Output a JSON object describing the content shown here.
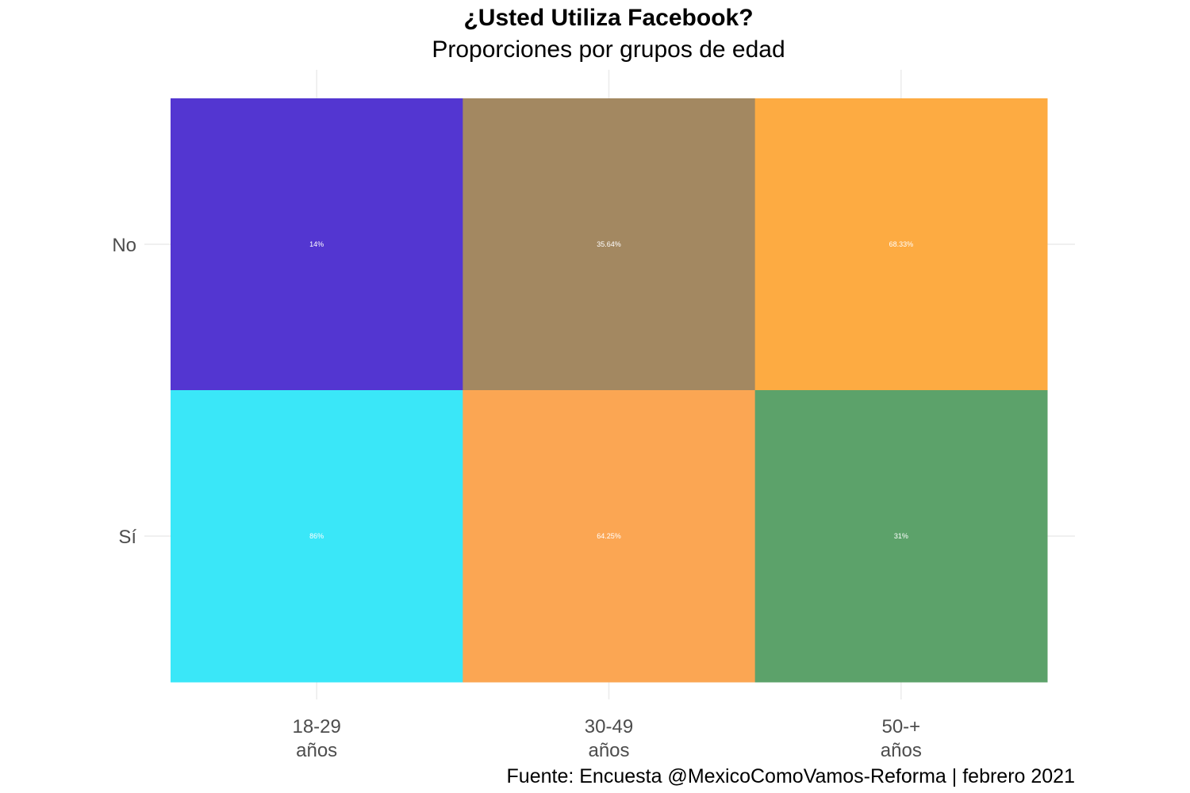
{
  "chart_data": {
    "type": "heatmap",
    "title": "¿Usted Utiliza Facebook?",
    "subtitle": "Proporciones por grupos de edad",
    "caption": "Fuente: Encuesta @MexicoComoVamos-Reforma | febrero 2021",
    "x_categories": [
      {
        "line1": "18-29",
        "line2": "años"
      },
      {
        "line1": "30-49",
        "line2": "años"
      },
      {
        "line1": "50-+",
        "line2": "años"
      }
    ],
    "y_categories": [
      "No",
      "Sí"
    ],
    "cells": [
      {
        "x": 0,
        "y": 0,
        "value": 14,
        "label": "14%",
        "color": "#5336d1"
      },
      {
        "x": 1,
        "y": 0,
        "value": 35.64,
        "label": "35.64%",
        "color": "#a38861"
      },
      {
        "x": 2,
        "y": 0,
        "value": 68.33,
        "label": "68.33%",
        "color": "#fdab42"
      },
      {
        "x": 0,
        "y": 1,
        "value": 86,
        "label": "86%",
        "color": "#3ae7f8"
      },
      {
        "x": 1,
        "y": 1,
        "value": 64.25,
        "label": "64.25%",
        "color": "#fba653"
      },
      {
        "x": 2,
        "y": 1,
        "value": 31,
        "label": "31%",
        "color": "#5ca26a"
      }
    ],
    "grid": true,
    "legend": "none"
  }
}
